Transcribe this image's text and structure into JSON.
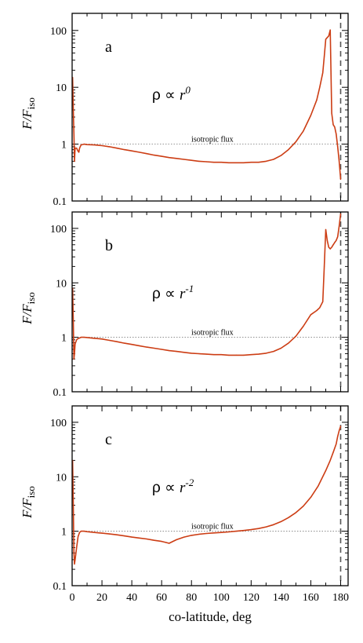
{
  "colors": {
    "series": "#cc3d14",
    "frame": "#000000",
    "reference": "#888888",
    "marker": "#555555"
  },
  "figure": {
    "xlabel": "co-latitude, deg",
    "ylabel_main": "F/F",
    "ylabel_sub": "iso"
  },
  "chart_data": [
    {
      "type": "line",
      "panel_label": "a",
      "annotation": {
        "rho": "ρ ∝ ",
        "r": "r",
        "exp": "0"
      },
      "reference_label": "isotropic flux",
      "reference_value": 1,
      "marker_line_x": 180,
      "xlim": [
        0,
        185
      ],
      "ylim": [
        0.1,
        200
      ],
      "y_scale": "log",
      "xticks": [
        0,
        20,
        40,
        60,
        80,
        100,
        120,
        140,
        160,
        180
      ],
      "yticks": [
        0.1,
        1,
        10,
        100
      ],
      "ytick_labels": [
        "0.1",
        "1",
        "10",
        "100"
      ],
      "series": [
        {
          "x": [
            0.3,
            0.8,
            1.2,
            1.6,
            2,
            3,
            4,
            4.5,
            5,
            6,
            8,
            10,
            15,
            20,
            25,
            30,
            35,
            40,
            45,
            50,
            55,
            60,
            65,
            70,
            75,
            80,
            85,
            90,
            95,
            100,
            105,
            110,
            115,
            120,
            125,
            130,
            135,
            140,
            145,
            150,
            155,
            160,
            164,
            166,
            168,
            169,
            170,
            171,
            172,
            173,
            174,
            175,
            176,
            177,
            178,
            179,
            180
          ],
          "y": [
            15,
            4,
            1.5,
            0.5,
            0.85,
            0.85,
            0.75,
            0.72,
            0.85,
            0.97,
            1.0,
            0.98,
            0.97,
            0.94,
            0.9,
            0.85,
            0.8,
            0.76,
            0.72,
            0.68,
            0.64,
            0.61,
            0.58,
            0.56,
            0.54,
            0.52,
            0.5,
            0.49,
            0.48,
            0.48,
            0.47,
            0.47,
            0.47,
            0.48,
            0.48,
            0.5,
            0.54,
            0.63,
            0.8,
            1.1,
            1.7,
            3.2,
            6,
            10,
            18,
            35,
            70,
            75,
            80,
            102,
            3.5,
            2.2,
            2,
            1.5,
            0.9,
            0.5,
            0.24
          ]
        }
      ]
    },
    {
      "type": "line",
      "panel_label": "b",
      "annotation": {
        "rho": "ρ ∝ ",
        "r": "r",
        "exp": "-1"
      },
      "reference_label": "isotropic flux",
      "reference_value": 1,
      "marker_line_x": 180,
      "xlim": [
        0,
        185
      ],
      "ylim": [
        0.1,
        200
      ],
      "y_scale": "log",
      "xticks": [
        0,
        20,
        40,
        60,
        80,
        100,
        120,
        140,
        160,
        180
      ],
      "yticks": [
        0.1,
        1,
        10,
        100
      ],
      "ytick_labels": [
        "0.1",
        "1",
        "10",
        "100"
      ],
      "series": [
        {
          "x": [
            0.3,
            0.8,
            1.2,
            1.6,
            2,
            3,
            4,
            5,
            6,
            8,
            10,
            15,
            20,
            25,
            30,
            35,
            40,
            45,
            50,
            55,
            60,
            65,
            70,
            75,
            80,
            85,
            90,
            95,
            100,
            105,
            110,
            115,
            120,
            125,
            130,
            135,
            140,
            145,
            150,
            155,
            160,
            164,
            166,
            168,
            169,
            170,
            171,
            172,
            173,
            174,
            175,
            176,
            177,
            178,
            179,
            180
          ],
          "y": [
            8,
            2,
            0.4,
            0.5,
            0.75,
            0.9,
            0.95,
            0.97,
            1.0,
            1.0,
            0.99,
            0.96,
            0.93,
            0.88,
            0.83,
            0.78,
            0.74,
            0.7,
            0.66,
            0.63,
            0.6,
            0.57,
            0.55,
            0.53,
            0.51,
            0.5,
            0.49,
            0.48,
            0.48,
            0.47,
            0.47,
            0.47,
            0.48,
            0.49,
            0.51,
            0.55,
            0.63,
            0.78,
            1.05,
            1.6,
            2.6,
            3.1,
            3.5,
            4.5,
            20,
            95,
            60,
            45,
            42,
            45,
            50,
            55,
            60,
            70,
            110,
            185
          ]
        }
      ]
    },
    {
      "type": "line",
      "panel_label": "c",
      "annotation": {
        "rho": "ρ ∝ ",
        "r": "r",
        "exp": "-2"
      },
      "reference_label": "isotropic flux",
      "reference_value": 1,
      "marker_line_x": 180,
      "xlim": [
        0,
        185
      ],
      "ylim": [
        0.1,
        200
      ],
      "y_scale": "log",
      "xticks": [
        0,
        20,
        40,
        60,
        80,
        100,
        120,
        140,
        160,
        180
      ],
      "xtick_labels": [
        "0",
        "20",
        "40",
        "60",
        "80",
        "100",
        "120",
        "140",
        "160",
        "180"
      ],
      "yticks": [
        0.1,
        1,
        10,
        100
      ],
      "ytick_labels": [
        "0.1",
        "1",
        "10",
        "100"
      ],
      "series": [
        {
          "x": [
            0.3,
            0.8,
            1.2,
            1.6,
            2,
            3,
            4,
            5,
            6,
            8,
            10,
            15,
            20,
            25,
            30,
            35,
            40,
            45,
            50,
            55,
            60,
            63,
            65,
            67,
            70,
            75,
            80,
            85,
            90,
            95,
            100,
            105,
            110,
            115,
            120,
            125,
            130,
            135,
            140,
            145,
            150,
            155,
            160,
            165,
            170,
            173,
            175,
            177,
            178,
            179,
            180
          ],
          "y": [
            20,
            3,
            0.4,
            0.25,
            0.3,
            0.5,
            0.8,
            0.95,
            1.0,
            1.0,
            0.98,
            0.95,
            0.92,
            0.89,
            0.86,
            0.82,
            0.78,
            0.75,
            0.72,
            0.68,
            0.65,
            0.62,
            0.6,
            0.64,
            0.7,
            0.78,
            0.84,
            0.88,
            0.91,
            0.93,
            0.95,
            0.97,
            1.0,
            1.03,
            1.07,
            1.12,
            1.2,
            1.32,
            1.5,
            1.78,
            2.2,
            2.9,
            4.2,
            6.8,
            13,
            20,
            28,
            40,
            55,
            70,
            85
          ]
        }
      ]
    }
  ]
}
